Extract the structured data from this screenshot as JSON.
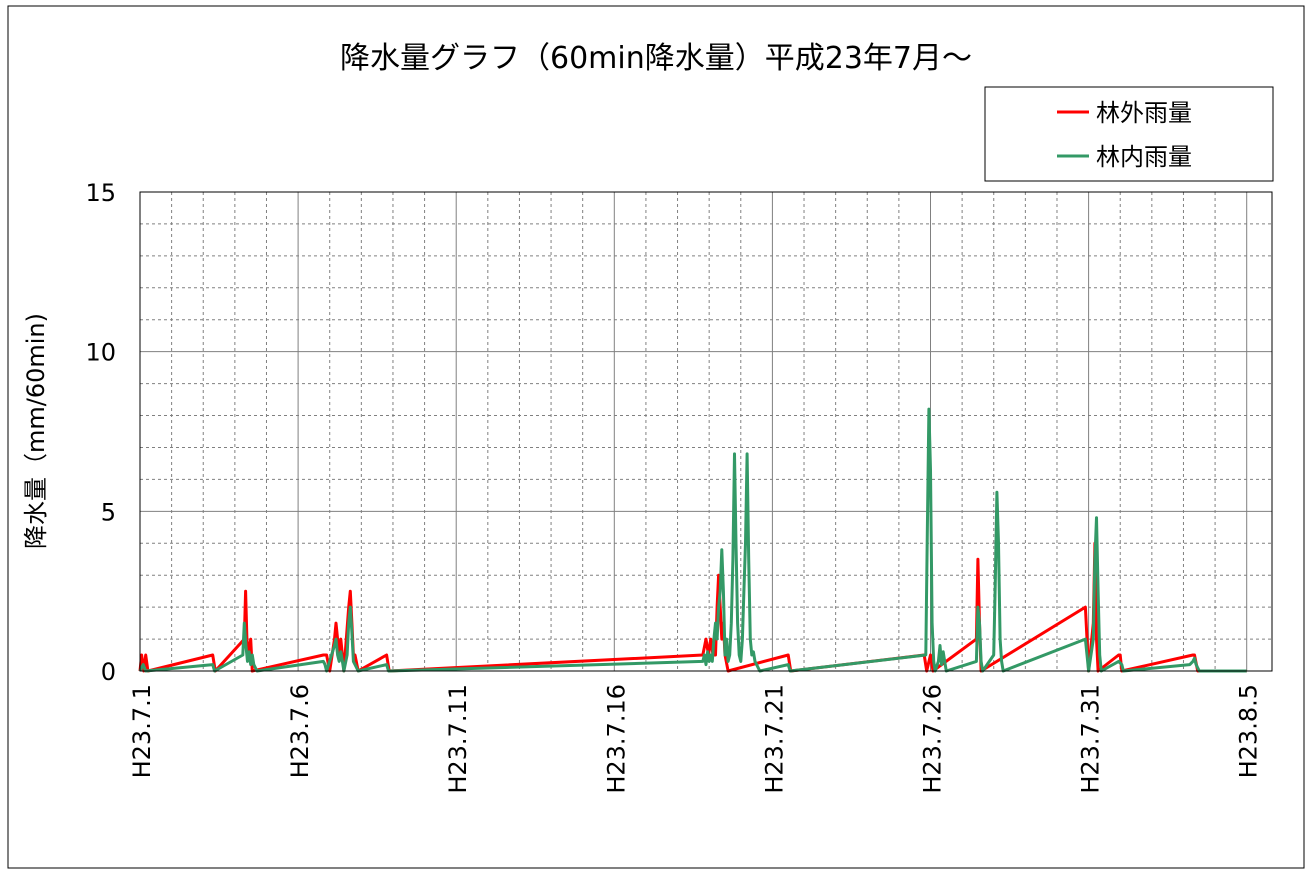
{
  "chart_data": {
    "type": "line",
    "title": "降水量グラフ（60min降水量）平成23年7月～",
    "ylabel": "降水量（mm/60min)",
    "xlabel": "",
    "ylim": [
      0,
      15
    ],
    "yticks": [
      0,
      5,
      10,
      15
    ],
    "xrange_days": [
      0,
      35.8
    ],
    "xtick_labels": [
      "H23.7.1",
      "H23.7.6",
      "H23.7.11",
      "H23.7.16",
      "H23.7.21",
      "H23.7.26",
      "H23.7.31",
      "H23.8.5"
    ],
    "xtick_days": [
      0,
      5,
      10,
      15,
      20,
      25,
      30,
      35
    ],
    "grid": true,
    "legend_position": "top-right",
    "series": [
      {
        "name": "林外雨量",
        "color": "#ff0000",
        "points": [
          [
            0.05,
            0.5
          ],
          [
            0.12,
            0
          ],
          [
            0.18,
            0.5
          ],
          [
            0.25,
            0
          ],
          [
            2.3,
            0.5
          ],
          [
            2.38,
            0
          ],
          [
            3.3,
            1.0
          ],
          [
            3.34,
            2.5
          ],
          [
            3.38,
            1.0
          ],
          [
            3.42,
            0.5
          ],
          [
            3.5,
            1.0
          ],
          [
            3.55,
            0
          ],
          [
            5.8,
            0.5
          ],
          [
            5.9,
            0.5
          ],
          [
            6.0,
            0
          ],
          [
            6.15,
            1.0
          ],
          [
            6.2,
            1.5
          ],
          [
            6.25,
            1.0
          ],
          [
            6.3,
            0.5
          ],
          [
            6.35,
            1.0
          ],
          [
            6.4,
            0.5
          ],
          [
            6.45,
            0
          ],
          [
            6.6,
            2.0
          ],
          [
            6.65,
            2.5
          ],
          [
            6.7,
            1.5
          ],
          [
            6.75,
            0.5
          ],
          [
            6.8,
            0.5
          ],
          [
            6.9,
            0
          ],
          [
            7.8,
            0.5
          ],
          [
            7.88,
            0
          ],
          [
            17.8,
            0.5
          ],
          [
            17.9,
            1.0
          ],
          [
            17.98,
            0.5
          ],
          [
            18.05,
            1.0
          ],
          [
            18.12,
            0.5
          ],
          [
            18.2,
            0.5
          ],
          [
            18.25,
            2.0
          ],
          [
            18.3,
            3.0
          ],
          [
            18.35,
            2.0
          ],
          [
            18.4,
            1.0
          ],
          [
            18.45,
            1.5
          ],
          [
            18.5,
            0.5
          ],
          [
            18.6,
            0
          ],
          [
            20.5,
            0.5
          ],
          [
            20.58,
            0
          ],
          [
            24.8,
            0.5
          ],
          [
            24.88,
            0
          ],
          [
            25.0,
            0.5
          ],
          [
            25.08,
            0
          ],
          [
            26.45,
            1.0
          ],
          [
            26.5,
            3.5
          ],
          [
            26.55,
            1.5
          ],
          [
            26.6,
            0
          ],
          [
            29.9,
            2.0
          ],
          [
            29.95,
            1.0
          ],
          [
            30.0,
            0
          ],
          [
            30.15,
            1.5
          ],
          [
            30.2,
            4.0
          ],
          [
            30.25,
            1.0
          ],
          [
            30.3,
            0
          ],
          [
            30.95,
            0.5
          ],
          [
            31.0,
            0.5
          ],
          [
            31.05,
            0
          ],
          [
            33.3,
            0.5
          ],
          [
            33.35,
            0.5
          ],
          [
            33.45,
            0
          ]
        ]
      },
      {
        "name": "林内雨量",
        "color": "#339966",
        "points": [
          [
            0.1,
            0.2
          ],
          [
            0.18,
            0
          ],
          [
            2.3,
            0.2
          ],
          [
            2.36,
            0
          ],
          [
            3.25,
            0.5
          ],
          [
            3.3,
            1.5
          ],
          [
            3.35,
            0.8
          ],
          [
            3.4,
            0.3
          ],
          [
            3.45,
            0.6
          ],
          [
            3.5,
            0.2
          ],
          [
            3.55,
            0.5
          ],
          [
            3.6,
            0.2
          ],
          [
            3.7,
            0
          ],
          [
            5.8,
            0.3
          ],
          [
            5.85,
            0.2
          ],
          [
            5.9,
            0
          ],
          [
            6.15,
            0.8
          ],
          [
            6.2,
            1.0
          ],
          [
            6.25,
            0.5
          ],
          [
            6.3,
            0.3
          ],
          [
            6.35,
            0.6
          ],
          [
            6.4,
            0.3
          ],
          [
            6.45,
            0
          ],
          [
            6.55,
            0.5
          ],
          [
            6.6,
            1.5
          ],
          [
            6.65,
            2.0
          ],
          [
            6.7,
            1.2
          ],
          [
            6.75,
            0.3
          ],
          [
            6.8,
            0.2
          ],
          [
            6.9,
            0
          ],
          [
            7.8,
            0.2
          ],
          [
            7.86,
            0
          ],
          [
            17.8,
            0.3
          ],
          [
            17.85,
            0.5
          ],
          [
            17.9,
            0.2
          ],
          [
            17.95,
            0.6
          ],
          [
            18.0,
            0.3
          ],
          [
            18.05,
            0.5
          ],
          [
            18.1,
            0.3
          ],
          [
            18.15,
            1.0
          ],
          [
            18.2,
            1.5
          ],
          [
            18.25,
            1.0
          ],
          [
            18.3,
            2.0
          ],
          [
            18.35,
            2.5
          ],
          [
            18.4,
            3.8
          ],
          [
            18.45,
            2.5
          ],
          [
            18.5,
            0.5
          ],
          [
            18.55,
            1.0
          ],
          [
            18.6,
            0.3
          ],
          [
            18.65,
            0.5
          ],
          [
            18.7,
            1.5
          ],
          [
            18.75,
            3.5
          ],
          [
            18.8,
            6.8
          ],
          [
            18.85,
            4.0
          ],
          [
            18.9,
            1.5
          ],
          [
            18.95,
            0.5
          ],
          [
            19.0,
            0.3
          ],
          [
            19.05,
            1.0
          ],
          [
            19.1,
            2.5
          ],
          [
            19.15,
            4.0
          ],
          [
            19.2,
            6.8
          ],
          [
            19.25,
            3.5
          ],
          [
            19.3,
            1.0
          ],
          [
            19.35,
            0.5
          ],
          [
            19.4,
            0.6
          ],
          [
            19.45,
            0.3
          ],
          [
            19.5,
            0.2
          ],
          [
            19.6,
            0
          ],
          [
            20.5,
            0.2
          ],
          [
            20.56,
            0
          ],
          [
            24.85,
            0.5
          ],
          [
            24.9,
            4.3
          ],
          [
            24.95,
            8.2
          ],
          [
            25.0,
            6.3
          ],
          [
            25.05,
            1.5
          ],
          [
            25.1,
            0.3
          ],
          [
            25.15,
            0
          ],
          [
            25.25,
            0.3
          ],
          [
            25.3,
            0.8
          ],
          [
            25.35,
            0.2
          ],
          [
            25.4,
            0.6
          ],
          [
            25.45,
            0.3
          ],
          [
            25.5,
            0
          ],
          [
            26.45,
            0.3
          ],
          [
            26.5,
            2.0
          ],
          [
            26.55,
            1.5
          ],
          [
            26.6,
            0.3
          ],
          [
            26.65,
            0
          ],
          [
            27.0,
            0.5
          ],
          [
            27.05,
            2.8
          ],
          [
            27.1,
            5.6
          ],
          [
            27.15,
            4.0
          ],
          [
            27.2,
            1.0
          ],
          [
            27.25,
            0.3
          ],
          [
            27.3,
            0
          ],
          [
            29.9,
            1.0
          ],
          [
            29.95,
            0.5
          ],
          [
            30.0,
            0
          ],
          [
            30.15,
            1.0
          ],
          [
            30.2,
            3.5
          ],
          [
            30.25,
            4.8
          ],
          [
            30.3,
            2.5
          ],
          [
            30.35,
            0.5
          ],
          [
            30.4,
            0
          ],
          [
            30.95,
            0.3
          ],
          [
            31.05,
            0.2
          ],
          [
            31.1,
            0
          ],
          [
            33.2,
            0.2
          ],
          [
            33.3,
            0.3
          ],
          [
            33.35,
            0.4
          ],
          [
            33.4,
            0.2
          ],
          [
            33.5,
            0
          ]
        ]
      }
    ]
  }
}
